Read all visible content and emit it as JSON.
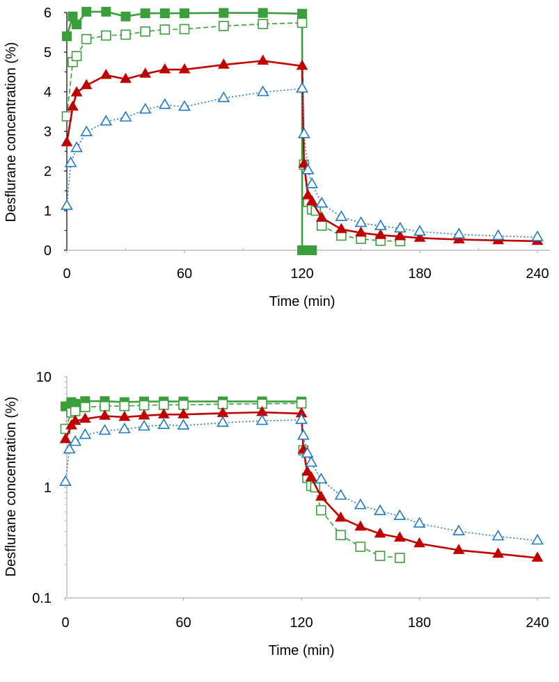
{
  "chart_data": [
    {
      "type": "line",
      "yscale": "linear",
      "xlabel": "Time (min)",
      "ylabel": "Desflurane concentration (%)",
      "xlim": [
        0,
        240
      ],
      "ylim": [
        0,
        6
      ],
      "xticks": [
        0,
        60,
        120,
        180,
        240
      ],
      "xtick_labels": [
        "0",
        "60",
        "120",
        "180",
        "240"
      ],
      "yticks": [
        0,
        1,
        2,
        3,
        4,
        5,
        6
      ],
      "ytick_labels": [
        "0",
        "1",
        "2",
        "3",
        "4",
        "5",
        "6"
      ],
      "series": [
        {
          "name": "filled-square",
          "color": "#3a9e3a",
          "marker": "square-filled",
          "line": "solid",
          "x": [
            0,
            3,
            5,
            10,
            20,
            30,
            40,
            50,
            60,
            80,
            100,
            120,
            120,
            121,
            122,
            123,
            124,
            125
          ],
          "y": [
            5.4,
            5.9,
            5.7,
            6.02,
            6.02,
            5.9,
            5.98,
            5.98,
            5.98,
            5.99,
            5.99,
            5.97,
            0,
            0,
            0,
            0,
            0,
            0
          ]
        },
        {
          "name": "open-square",
          "color": "#3a9e3a",
          "marker": "square-open",
          "line": "dashed",
          "x": [
            0,
            3,
            5,
            10,
            20,
            30,
            40,
            50,
            60,
            80,
            100,
            120,
            121,
            123,
            125,
            127,
            130,
            140,
            150,
            160,
            170
          ],
          "y": [
            3.38,
            4.75,
            4.9,
            5.33,
            5.42,
            5.44,
            5.52,
            5.57,
            5.58,
            5.66,
            5.71,
            5.74,
            2.16,
            1.22,
            1.03,
            1.0,
            0.62,
            0.37,
            0.29,
            0.24,
            0.23
          ]
        },
        {
          "name": "filled-triangle",
          "color": "#c00000",
          "marker": "triangle-filled",
          "line": "solid",
          "x": [
            0,
            3,
            5,
            10,
            20,
            30,
            40,
            50,
            60,
            80,
            100,
            120,
            121,
            123,
            125,
            130,
            140,
            150,
            160,
            170,
            180,
            200,
            220,
            240
          ],
          "y": [
            2.72,
            3.62,
            3.98,
            4.16,
            4.42,
            4.32,
            4.45,
            4.56,
            4.56,
            4.68,
            4.78,
            4.65,
            2.18,
            1.38,
            1.23,
            0.82,
            0.53,
            0.44,
            0.38,
            0.35,
            0.31,
            0.27,
            0.25,
            0.23
          ]
        },
        {
          "name": "open-triangle",
          "color": "#1f78c8",
          "marker": "triangle-open",
          "line": "dotted",
          "x": [
            0,
            2,
            5,
            10,
            20,
            30,
            40,
            50,
            60,
            80,
            100,
            120,
            121,
            123,
            125,
            130,
            140,
            150,
            160,
            170,
            180,
            200,
            220,
            240
          ],
          "y": [
            1.12,
            2.2,
            2.58,
            2.98,
            3.25,
            3.35,
            3.55,
            3.67,
            3.62,
            3.84,
            3.99,
            4.08,
            2.93,
            2.02,
            1.67,
            1.18,
            0.84,
            0.69,
            0.61,
            0.55,
            0.47,
            0.4,
            0.36,
            0.33
          ]
        }
      ]
    },
    {
      "type": "line",
      "yscale": "log",
      "xlabel": "Time (min)",
      "ylabel": "Desflurane concentration (%)",
      "xlim": [
        0,
        240
      ],
      "ylim": [
        0.1,
        10
      ],
      "xticks": [
        0,
        60,
        120,
        180,
        240
      ],
      "xtick_labels": [
        "0",
        "60",
        "120",
        "180",
        "240"
      ],
      "yticks": [
        0.1,
        1,
        10
      ],
      "ytick_labels": [
        "0.1",
        "1",
        "10"
      ],
      "series": [
        {
          "name": "filled-square",
          "color": "#3a9e3a",
          "marker": "square-filled",
          "line": "solid",
          "x": [
            0,
            3,
            5,
            10,
            20,
            30,
            40,
            50,
            60,
            80,
            100,
            120
          ],
          "y": [
            5.4,
            5.9,
            5.7,
            6.02,
            6.02,
            5.9,
            5.98,
            5.98,
            5.98,
            5.99,
            5.99,
            5.97
          ]
        },
        {
          "name": "open-square",
          "color": "#3a9e3a",
          "marker": "square-open",
          "line": "dashed",
          "x": [
            0,
            3,
            5,
            10,
            20,
            30,
            40,
            50,
            60,
            80,
            100,
            120,
            121,
            123,
            125,
            127,
            130,
            140,
            150,
            160,
            170
          ],
          "y": [
            3.38,
            4.75,
            4.9,
            5.33,
            5.42,
            5.44,
            5.52,
            5.57,
            5.58,
            5.66,
            5.71,
            5.74,
            2.16,
            1.22,
            1.03,
            1.0,
            0.62,
            0.37,
            0.29,
            0.24,
            0.23
          ]
        },
        {
          "name": "filled-triangle",
          "color": "#c00000",
          "marker": "triangle-filled",
          "line": "solid",
          "x": [
            0,
            3,
            5,
            10,
            20,
            30,
            40,
            50,
            60,
            80,
            100,
            120,
            121,
            123,
            125,
            130,
            140,
            150,
            160,
            170,
            180,
            200,
            220,
            240
          ],
          "y": [
            2.72,
            3.62,
            3.98,
            4.16,
            4.42,
            4.32,
            4.45,
            4.56,
            4.56,
            4.68,
            4.78,
            4.65,
            2.18,
            1.38,
            1.23,
            0.82,
            0.53,
            0.44,
            0.38,
            0.35,
            0.31,
            0.27,
            0.25,
            0.23
          ]
        },
        {
          "name": "open-triangle",
          "color": "#1f78c8",
          "marker": "triangle-open",
          "line": "dotted",
          "x": [
            0,
            2,
            5,
            10,
            20,
            30,
            40,
            50,
            60,
            80,
            100,
            120,
            121,
            123,
            125,
            130,
            140,
            150,
            160,
            170,
            180,
            200,
            220,
            240
          ],
          "y": [
            1.12,
            2.2,
            2.58,
            2.98,
            3.25,
            3.35,
            3.55,
            3.67,
            3.62,
            3.84,
            3.99,
            4.08,
            2.93,
            2.02,
            1.67,
            1.18,
            0.84,
            0.69,
            0.61,
            0.55,
            0.47,
            0.4,
            0.36,
            0.33
          ]
        }
      ]
    }
  ]
}
